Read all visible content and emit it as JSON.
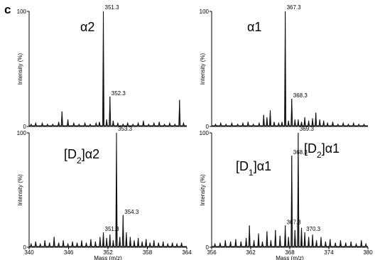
{
  "figure": {
    "panel_letter": "c"
  },
  "chart_data": [
    {
      "type": "line",
      "id": "a2",
      "title": "α2",
      "title_parts": [
        {
          "t": "α2"
        }
      ],
      "ylabel": "Intensity (%)",
      "xlabel": "",
      "xlim": [
        340,
        364
      ],
      "ylim": [
        0,
        100
      ],
      "xticks": [],
      "yticks": [
        0,
        100
      ],
      "grid": false,
      "peaks": [
        {
          "x": 340.3,
          "y": 2
        },
        {
          "x": 341.0,
          "y": 3
        },
        {
          "x": 342.0,
          "y": 3
        },
        {
          "x": 342.8,
          "y": 2
        },
        {
          "x": 343.6,
          "y": 2
        },
        {
          "x": 344.5,
          "y": 4
        },
        {
          "x": 345.0,
          "y": 13
        },
        {
          "x": 345.9,
          "y": 6
        },
        {
          "x": 346.8,
          "y": 3
        },
        {
          "x": 347.6,
          "y": 2
        },
        {
          "x": 348.5,
          "y": 3
        },
        {
          "x": 349.3,
          "y": 2
        },
        {
          "x": 350.2,
          "y": 3
        },
        {
          "x": 350.7,
          "y": 4
        },
        {
          "x": 351.3,
          "y": 100
        },
        {
          "x": 351.8,
          "y": 6
        },
        {
          "x": 352.3,
          "y": 26
        },
        {
          "x": 352.8,
          "y": 5
        },
        {
          "x": 353.5,
          "y": 3
        },
        {
          "x": 354.3,
          "y": 2
        },
        {
          "x": 355.0,
          "y": 3
        },
        {
          "x": 355.8,
          "y": 2
        },
        {
          "x": 356.6,
          "y": 3
        },
        {
          "x": 357.4,
          "y": 5
        },
        {
          "x": 358.2,
          "y": 2
        },
        {
          "x": 359.0,
          "y": 3
        },
        {
          "x": 359.8,
          "y": 4
        },
        {
          "x": 360.6,
          "y": 2
        },
        {
          "x": 361.4,
          "y": 3
        },
        {
          "x": 362.2,
          "y": 2
        },
        {
          "x": 362.9,
          "y": 23
        },
        {
          "x": 363.5,
          "y": 3
        }
      ],
      "labels": [
        {
          "x": 351.3,
          "y": 100,
          "text": "351.3"
        },
        {
          "x": 352.3,
          "y": 26,
          "text": "352.3"
        }
      ]
    },
    {
      "type": "line",
      "id": "a1",
      "title": "α1",
      "title_parts": [
        {
          "t": "α1"
        }
      ],
      "ylabel": "Intensity (%)",
      "xlabel": "",
      "xlim": [
        356,
        380
      ],
      "ylim": [
        0,
        100
      ],
      "xticks": [],
      "yticks": [
        0,
        100
      ],
      "grid": false,
      "peaks": [
        {
          "x": 356.6,
          "y": 2
        },
        {
          "x": 357.4,
          "y": 3
        },
        {
          "x": 358.2,
          "y": 2
        },
        {
          "x": 359.1,
          "y": 3
        },
        {
          "x": 360.0,
          "y": 2
        },
        {
          "x": 360.8,
          "y": 3
        },
        {
          "x": 361.6,
          "y": 4
        },
        {
          "x": 362.4,
          "y": 2
        },
        {
          "x": 363.3,
          "y": 3
        },
        {
          "x": 364.0,
          "y": 10
        },
        {
          "x": 364.5,
          "y": 8
        },
        {
          "x": 365.0,
          "y": 14
        },
        {
          "x": 365.6,
          "y": 4
        },
        {
          "x": 366.3,
          "y": 3
        },
        {
          "x": 366.8,
          "y": 4
        },
        {
          "x": 367.3,
          "y": 100
        },
        {
          "x": 367.8,
          "y": 5
        },
        {
          "x": 368.3,
          "y": 24
        },
        {
          "x": 368.8,
          "y": 6
        },
        {
          "x": 369.3,
          "y": 6
        },
        {
          "x": 369.8,
          "y": 4
        },
        {
          "x": 370.3,
          "y": 8
        },
        {
          "x": 370.9,
          "y": 5
        },
        {
          "x": 371.5,
          "y": 7
        },
        {
          "x": 372.0,
          "y": 12
        },
        {
          "x": 372.6,
          "y": 6
        },
        {
          "x": 373.2,
          "y": 5
        },
        {
          "x": 373.8,
          "y": 3
        },
        {
          "x": 374.6,
          "y": 4
        },
        {
          "x": 375.4,
          "y": 2
        },
        {
          "x": 376.2,
          "y": 3
        },
        {
          "x": 377.0,
          "y": 2
        },
        {
          "x": 377.8,
          "y": 3
        },
        {
          "x": 378.6,
          "y": 2
        },
        {
          "x": 379.4,
          "y": 2
        }
      ],
      "labels": [
        {
          "x": 367.3,
          "y": 100,
          "text": "367.3"
        },
        {
          "x": 368.3,
          "y": 24,
          "text": "368.3"
        }
      ]
    },
    {
      "type": "line",
      "id": "d2a2",
      "title": "[D2]α2",
      "title_parts": [
        {
          "t": "[D"
        },
        {
          "t": "2",
          "sub": true
        },
        {
          "t": "]α2"
        }
      ],
      "ylabel": "Intensity (%)",
      "xlabel": "Mass (m/z)",
      "xlim": [
        340,
        364
      ],
      "ylim": [
        0,
        100
      ],
      "xticks": [
        340,
        346,
        352,
        358,
        364
      ],
      "yticks": [
        0,
        100
      ],
      "grid": false,
      "peaks": [
        {
          "x": 340.3,
          "y": 3
        },
        {
          "x": 341.0,
          "y": 5
        },
        {
          "x": 341.7,
          "y": 3
        },
        {
          "x": 342.4,
          "y": 6
        },
        {
          "x": 343.1,
          "y": 4
        },
        {
          "x": 343.8,
          "y": 9
        },
        {
          "x": 344.5,
          "y": 4
        },
        {
          "x": 345.2,
          "y": 6
        },
        {
          "x": 345.9,
          "y": 3
        },
        {
          "x": 346.6,
          "y": 5
        },
        {
          "x": 347.3,
          "y": 4
        },
        {
          "x": 348.0,
          "y": 6
        },
        {
          "x": 348.7,
          "y": 4
        },
        {
          "x": 349.4,
          "y": 7
        },
        {
          "x": 350.1,
          "y": 5
        },
        {
          "x": 350.8,
          "y": 9
        },
        {
          "x": 351.3,
          "y": 13
        },
        {
          "x": 351.8,
          "y": 8
        },
        {
          "x": 352.3,
          "y": 11
        },
        {
          "x": 352.8,
          "y": 6
        },
        {
          "x": 353.3,
          "y": 100
        },
        {
          "x": 353.8,
          "y": 9
        },
        {
          "x": 354.3,
          "y": 28
        },
        {
          "x": 354.8,
          "y": 13
        },
        {
          "x": 355.4,
          "y": 9
        },
        {
          "x": 356.0,
          "y": 6
        },
        {
          "x": 356.6,
          "y": 8
        },
        {
          "x": 357.2,
          "y": 5
        },
        {
          "x": 357.8,
          "y": 7
        },
        {
          "x": 358.4,
          "y": 4
        },
        {
          "x": 359.0,
          "y": 6
        },
        {
          "x": 359.7,
          "y": 4
        },
        {
          "x": 360.4,
          "y": 5
        },
        {
          "x": 361.1,
          "y": 3
        },
        {
          "x": 361.8,
          "y": 4
        },
        {
          "x": 362.5,
          "y": 3
        },
        {
          "x": 363.2,
          "y": 4
        }
      ],
      "labels": [
        {
          "x": 351.3,
          "y": 13,
          "text": "351.3"
        },
        {
          "x": 353.3,
          "y": 100,
          "text": "353.3"
        },
        {
          "x": 354.3,
          "y": 28,
          "text": "354.3"
        }
      ]
    },
    {
      "type": "line",
      "id": "d1d2a1",
      "title": "[D1]α1",
      "title_parts": [
        {
          "t": "[D"
        },
        {
          "t": "1",
          "sub": true
        },
        {
          "t": "]α1"
        }
      ],
      "title2": "[D2]α1",
      "title2_parts": [
        {
          "t": "[D"
        },
        {
          "t": "2",
          "sub": true
        },
        {
          "t": "]α1"
        }
      ],
      "ylabel": "Intensity (%)",
      "xlabel": "Mass (m/z)",
      "xlim": [
        356,
        380
      ],
      "ylim": [
        0,
        100
      ],
      "xticks": [
        356,
        362,
        368,
        374,
        380
      ],
      "yticks": [
        0,
        100
      ],
      "grid": false,
      "peaks": [
        {
          "x": 356.5,
          "y": 3
        },
        {
          "x": 357.3,
          "y": 4
        },
        {
          "x": 358.1,
          "y": 6
        },
        {
          "x": 358.9,
          "y": 5
        },
        {
          "x": 359.7,
          "y": 7
        },
        {
          "x": 360.5,
          "y": 5
        },
        {
          "x": 361.3,
          "y": 8
        },
        {
          "x": 361.8,
          "y": 19
        },
        {
          "x": 362.5,
          "y": 6
        },
        {
          "x": 363.2,
          "y": 12
        },
        {
          "x": 363.8,
          "y": 5
        },
        {
          "x": 364.5,
          "y": 14
        },
        {
          "x": 365.1,
          "y": 6
        },
        {
          "x": 365.8,
          "y": 15
        },
        {
          "x": 366.5,
          "y": 10
        },
        {
          "x": 367.3,
          "y": 19
        },
        {
          "x": 367.8,
          "y": 9
        },
        {
          "x": 368.3,
          "y": 80
        },
        {
          "x": 368.8,
          "y": 15
        },
        {
          "x": 369.3,
          "y": 100
        },
        {
          "x": 369.8,
          "y": 17
        },
        {
          "x": 370.3,
          "y": 13
        },
        {
          "x": 370.9,
          "y": 9
        },
        {
          "x": 371.5,
          "y": 11
        },
        {
          "x": 372.1,
          "y": 6
        },
        {
          "x": 372.8,
          "y": 9
        },
        {
          "x": 373.5,
          "y": 5
        },
        {
          "x": 374.2,
          "y": 7
        },
        {
          "x": 375.0,
          "y": 4
        },
        {
          "x": 375.8,
          "y": 6
        },
        {
          "x": 376.6,
          "y": 4
        },
        {
          "x": 377.4,
          "y": 5
        },
        {
          "x": 378.2,
          "y": 3
        },
        {
          "x": 379.0,
          "y": 6
        },
        {
          "x": 379.7,
          "y": 3
        }
      ],
      "labels": [
        {
          "x": 367.3,
          "y": 19,
          "text": "367.3"
        },
        {
          "x": 368.3,
          "y": 80,
          "text": "368.3"
        },
        {
          "x": 369.3,
          "y": 100,
          "text": "369.3"
        },
        {
          "x": 370.3,
          "y": 13,
          "text": "370.3"
        }
      ]
    }
  ]
}
